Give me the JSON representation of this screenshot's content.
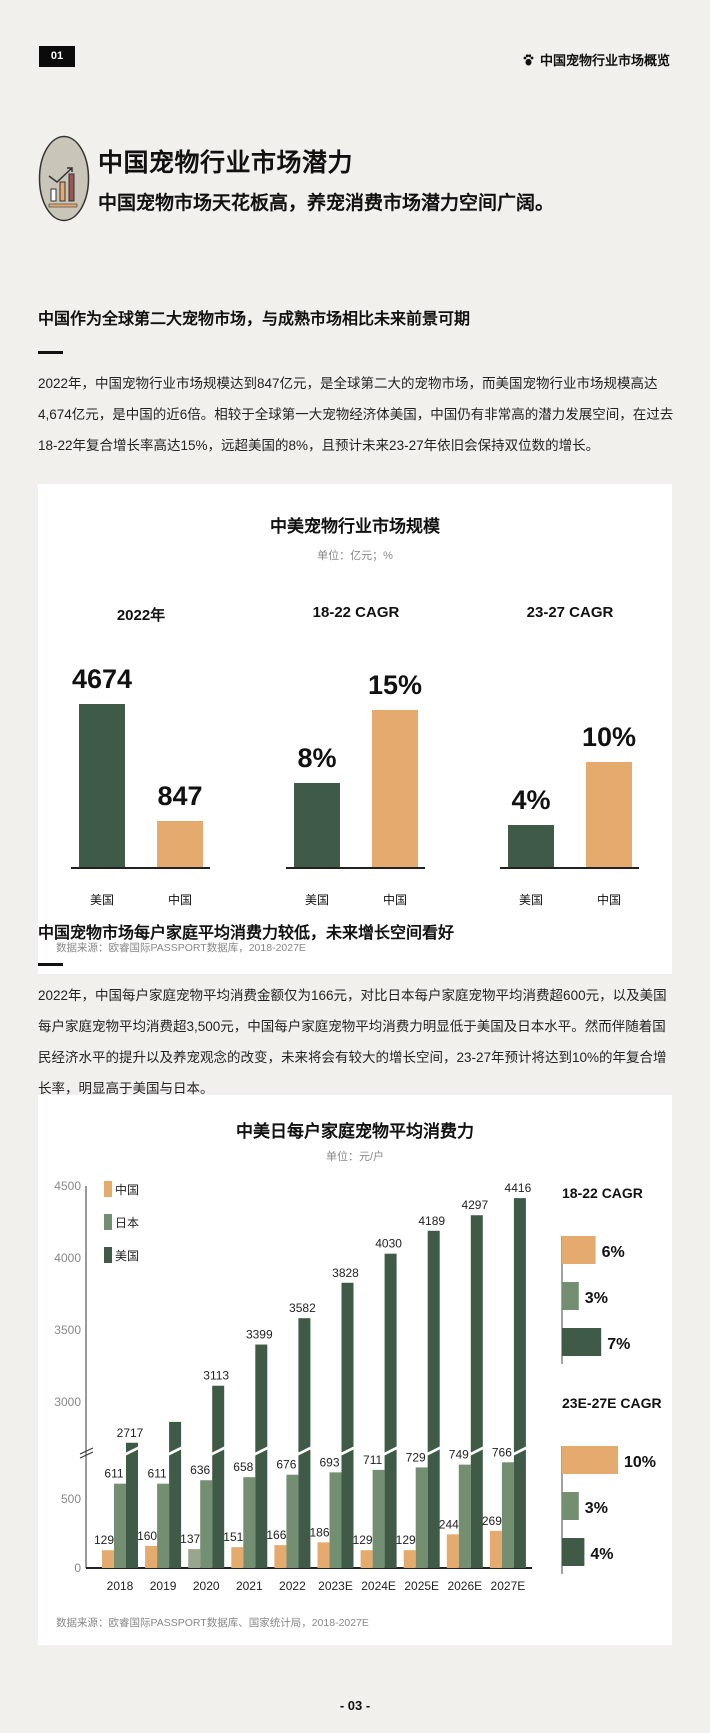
{
  "header": {
    "page_badge": "01",
    "section_name": "中国宠物行业市场概览",
    "paw_icon": "paw-icon"
  },
  "hero": {
    "title": "中国宠物行业市场潜力",
    "subtitle": "中国宠物市场天花板高，养宠消费市场潜力空间广阔。",
    "icon": "growth-chart-icon"
  },
  "section1": {
    "heading": "中国作为全球第二大宠物市场，与成熟市场相比未来前景可期",
    "paragraph": "2022年，中国宠物行业市场规模达到847亿元，是全球第二大的宠物市场，而美国宠物行业市场规模高达4,674亿元，是中国的近6倍。相较于全球第一大宠物经济体美国，中国仍有非常高的潜力发展空间，在过去18-22年复合增长率高达15%，远超美国的8%，且预计未来23-27年依旧会保持双位数的增长。"
  },
  "section2": {
    "heading": "中国宠物市场每户家庭平均消费力较低，未来增长空间看好",
    "paragraph": "2022年，中国每户家庭宠物平均消费金额仅为166元，对比日本每户家庭宠物平均消费超600元，以及美国每户家庭宠物平均消费超3,500元，中国每户家庭宠物平均消费力明显低于美国及日本水平。然而伴随着国民经济水平的提升以及养宠观念的改变，未来将会有较大的增长空间，23-27年预计将达到10%的年复合增长率，明显高于美国与日本。"
  },
  "colors": {
    "us": "#3f5a47",
    "japan": "#748e72",
    "china": "#e5ab6e",
    "china_2020": "#9aa58f",
    "background": "#f2f0ec"
  },
  "chart_data": [
    {
      "type": "bar",
      "title": "中美宠物行业市场规模",
      "unit": "单位：亿元；%",
      "source": "数据来源：欧睿国际PASSPORT数据库，2018-2027E",
      "panels": [
        {
          "heading": "2022年",
          "categories": [
            "美国",
            "中国"
          ],
          "values": [
            4674,
            847
          ],
          "labels": [
            "4674",
            "847"
          ]
        },
        {
          "heading": "18-22 CAGR",
          "categories": [
            "美国",
            "中国"
          ],
          "values": [
            8,
            15
          ],
          "labels": [
            "8%",
            "15%"
          ]
        },
        {
          "heading": "23-27 CAGR",
          "categories": [
            "美国",
            "中国"
          ],
          "values": [
            4,
            10
          ],
          "labels": [
            "4%",
            "10%"
          ]
        }
      ]
    },
    {
      "type": "bar",
      "title": "中美日每户家庭宠物平均消费力",
      "unit": "单位：元/户",
      "source": "数据来源：欧睿国际PASSPORT数据库、国家统计局，2018-2027E",
      "categories": [
        "2018",
        "2019",
        "2020",
        "2021",
        "2022",
        "2023E",
        "2024E",
        "2025E",
        "2026E",
        "2027E"
      ],
      "series": [
        {
          "name": "中国",
          "values": [
            129,
            160,
            137,
            151,
            166,
            186,
            129,
            129,
            244,
            269
          ]
        },
        {
          "name": "日本",
          "values": [
            611,
            611,
            636,
            658,
            676,
            693,
            711,
            729,
            749,
            766
          ]
        },
        {
          "name": "美国",
          "values": [
            2717,
            2862,
            3113,
            3399,
            3582,
            3828,
            4030,
            4189,
            4297,
            4416
          ]
        }
      ],
      "us_label_hidden_index": 1,
      "yticks": [
        "0",
        "500",
        "3000",
        "3500",
        "4000",
        "4500"
      ],
      "ytick_values": [
        0,
        500,
        3000,
        3500,
        4000,
        4500
      ],
      "y_axis_break": true,
      "legend_placement": "top-left",
      "cagr_panels": [
        {
          "heading": "18-22 CAGR",
          "values": [
            6,
            3,
            7
          ],
          "labels": [
            "6%",
            "3%",
            "7%"
          ]
        },
        {
          "heading": "23E-27E CAGR",
          "values": [
            10,
            3,
            4
          ],
          "labels": [
            "10%",
            "3%",
            "4%"
          ]
        }
      ]
    }
  ],
  "footer": {
    "page_number": "- 03 -"
  }
}
